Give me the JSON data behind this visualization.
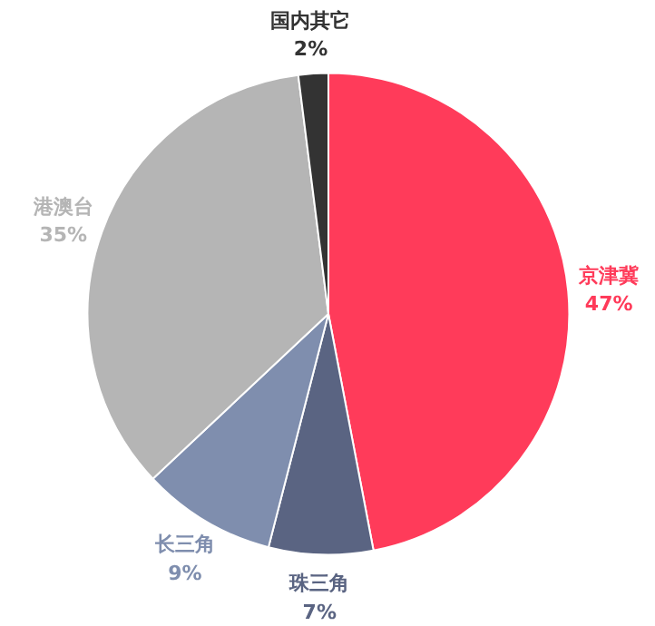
{
  "chart_data": {
    "type": "pie",
    "categories": [
      "京津冀",
      "珠三角",
      "长三角",
      "港澳台",
      "国内其它"
    ],
    "values": [
      47,
      7,
      9,
      35,
      2
    ],
    "colors": [
      "#ff3b5a",
      "#5a6482",
      "#7f8eae",
      "#b5b5b5",
      "#333333"
    ],
    "value_labels": [
      "47%",
      "7%",
      "9%",
      "35%",
      "2%"
    ]
  }
}
